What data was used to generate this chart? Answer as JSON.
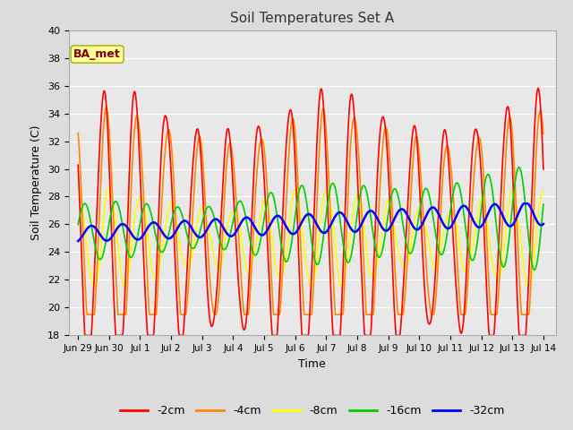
{
  "title": "Soil Temperatures Set A",
  "xlabel": "Time",
  "ylabel": "Soil Temperature (C)",
  "ylim": [
    18,
    40
  ],
  "background_color": "#dcdcdc",
  "plot_bg_color": "#e8e8e8",
  "grid_color": "#ffffff",
  "annotation_text": "BA_met",
  "annotation_box_color": "#ffff99",
  "annotation_text_color": "#800000",
  "series": {
    "-2cm": {
      "color": "#ff0000",
      "lw": 1.2
    },
    "-4cm": {
      "color": "#ff8800",
      "lw": 1.2
    },
    "-8cm": {
      "color": "#ffff00",
      "lw": 1.2
    },
    "-16cm": {
      "color": "#00cc00",
      "lw": 1.2
    },
    "-32cm": {
      "color": "#0000ff",
      "lw": 1.8
    }
  },
  "xtick_labels": [
    "Jun 29",
    "Jun 30",
    "Jul 1",
    "Jul 2",
    "Jul 3",
    "Jul 4",
    "Jul 5",
    "Jul 6",
    "Jul 7",
    "Jul 8",
    "Jul 9",
    "Jul 10",
    "Jul 11",
    "Jul 12",
    "Jul 13",
    "Jul 14"
  ],
  "xtick_positions": [
    0,
    1,
    2,
    3,
    4,
    5,
    6,
    7,
    8,
    9,
    10,
    11,
    12,
    13,
    14,
    15
  ],
  "ytick_vals": [
    18,
    20,
    22,
    24,
    26,
    28,
    30,
    32,
    34,
    36,
    38,
    40
  ]
}
